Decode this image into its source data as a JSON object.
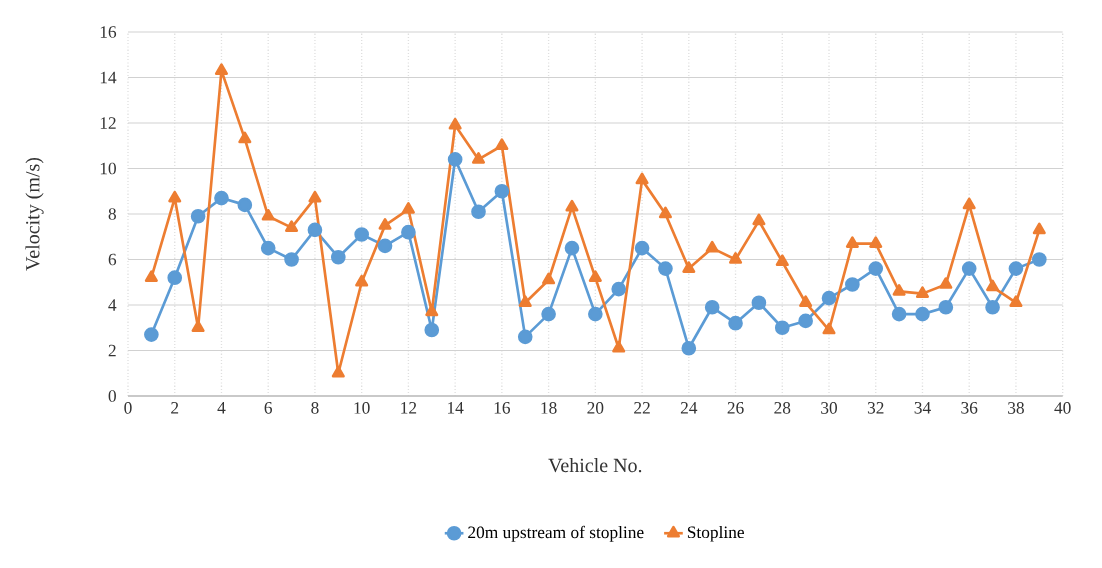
{
  "chart_data": {
    "type": "line",
    "xlabel": "Vehicle No.",
    "ylabel": "Velocity (m/s)",
    "x": [
      1,
      2,
      3,
      4,
      5,
      6,
      7,
      8,
      9,
      10,
      11,
      12,
      13,
      14,
      15,
      16,
      17,
      18,
      19,
      20,
      21,
      22,
      23,
      24,
      25,
      26,
      27,
      28,
      29,
      30,
      31,
      32,
      33,
      34,
      35,
      36,
      37,
      38,
      39
    ],
    "series": [
      {
        "name": "20m upstream of stopline",
        "color": "#5b9bd5",
        "marker": "circle",
        "values": [
          2.7,
          5.2,
          7.9,
          8.7,
          8.4,
          6.5,
          6.0,
          7.3,
          6.1,
          7.1,
          6.6,
          7.2,
          2.9,
          10.4,
          8.1,
          9.0,
          2.6,
          3.6,
          6.5,
          3.6,
          4.7,
          6.5,
          5.6,
          2.1,
          3.9,
          3.2,
          4.1,
          3.0,
          3.3,
          4.3,
          4.9,
          5.6,
          3.6,
          3.6,
          3.9,
          5.6,
          3.9,
          5.6,
          6.0
        ]
      },
      {
        "name": "Stopline",
        "color": "#ed7d31",
        "marker": "triangle",
        "values": [
          5.2,
          8.7,
          3.0,
          14.3,
          11.3,
          7.9,
          7.4,
          8.7,
          1.0,
          5.0,
          7.5,
          8.2,
          3.7,
          11.9,
          10.4,
          11.0,
          4.1,
          5.1,
          8.3,
          5.2,
          2.1,
          9.5,
          8.0,
          5.6,
          6.5,
          6.0,
          7.7,
          5.9,
          4.1,
          2.9,
          6.7,
          6.7,
          4.6,
          4.5,
          4.9,
          8.4,
          4.8,
          4.1,
          7.3
        ]
      }
    ],
    "xlim": [
      0,
      40
    ],
    "xticks": [
      0,
      2,
      4,
      6,
      8,
      10,
      12,
      14,
      16,
      18,
      20,
      22,
      24,
      26,
      28,
      30,
      32,
      34,
      36,
      38,
      40
    ],
    "ylim": [
      0,
      16
    ],
    "yticks": [
      0,
      2,
      4,
      6,
      8,
      10,
      12,
      14,
      16
    ],
    "grid": true,
    "legend": "bottom",
    "line_style": "solid"
  }
}
